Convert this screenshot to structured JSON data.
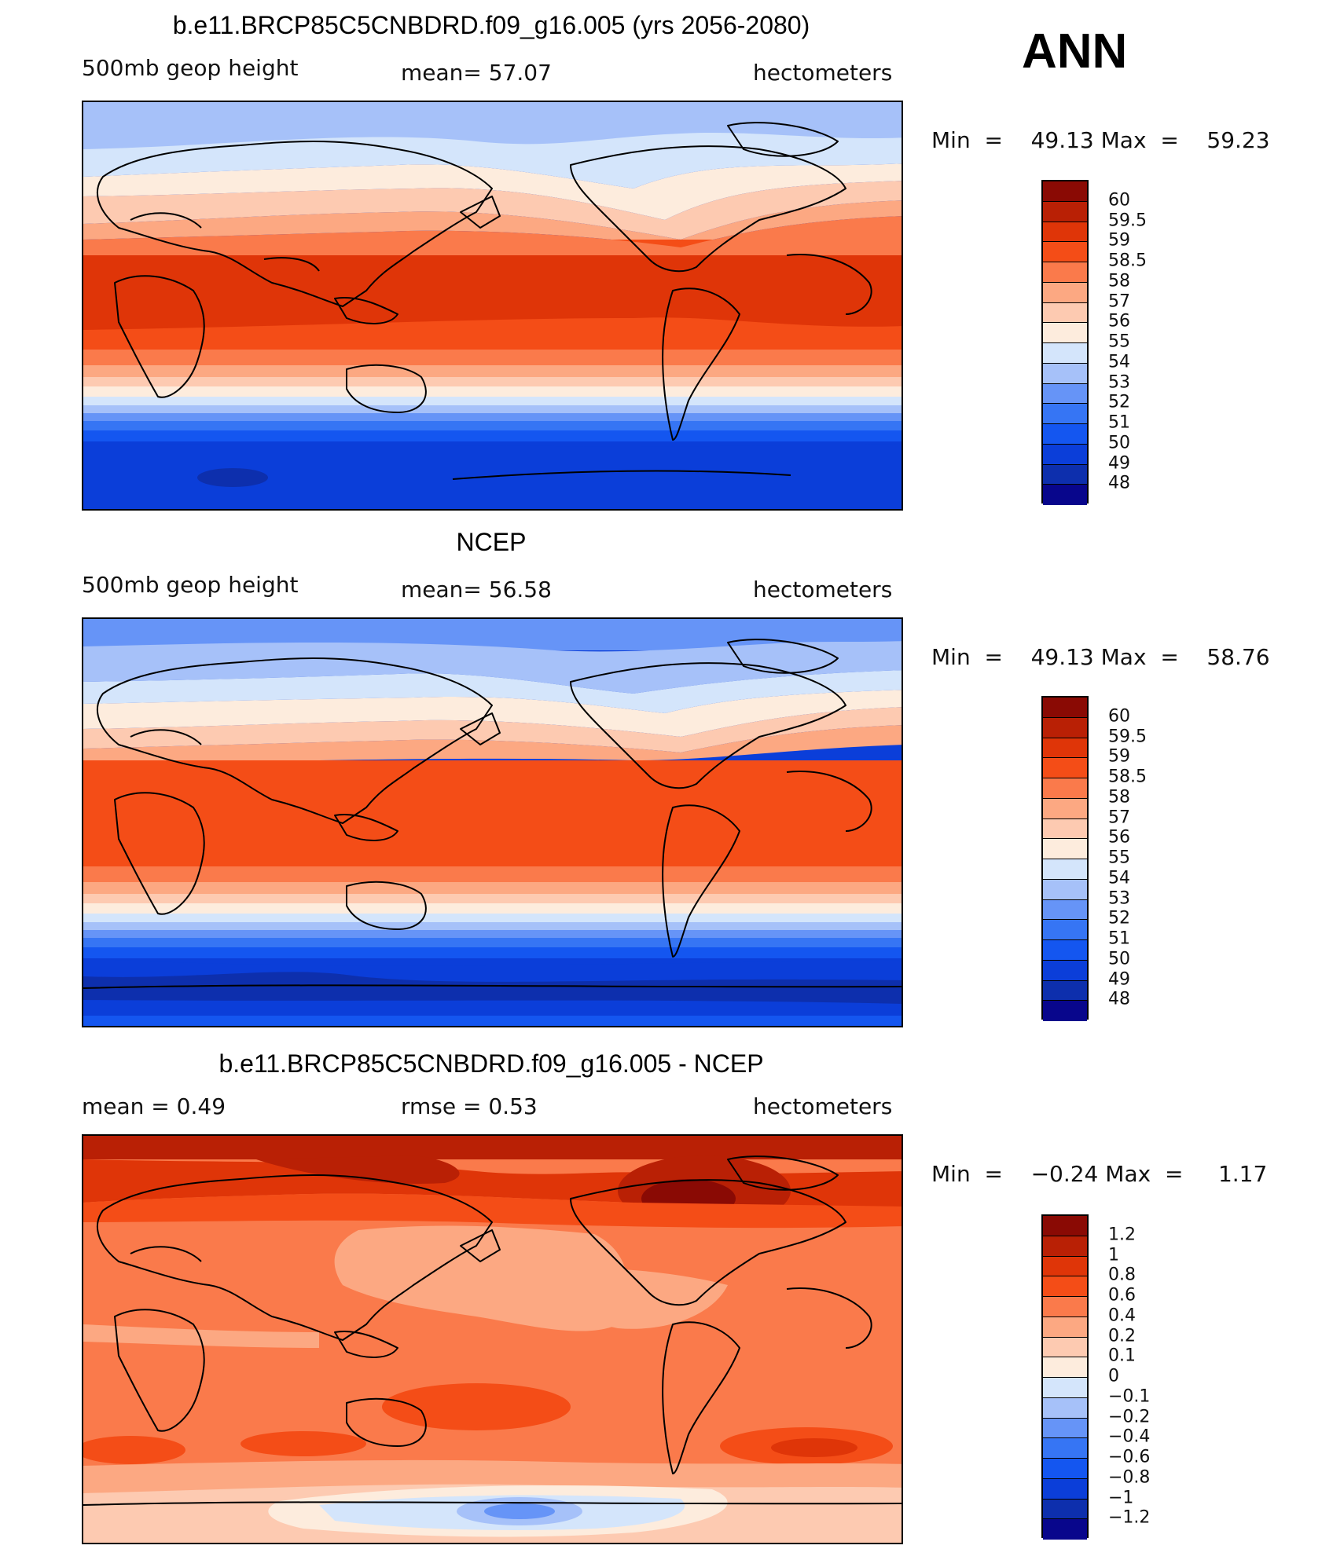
{
  "season": "ANN",
  "colors": {
    "abs": [
      "#08068c",
      "#0d2fad",
      "#0b3ed9",
      "#1456f0",
      "#3675f4",
      "#6694f7",
      "#a6c1f9",
      "#d4e5fb",
      "#fdecdd",
      "#fdcab1",
      "#fca882",
      "#fa7a4b",
      "#f44d17",
      "#df3508",
      "#b92005",
      "#8a0a04"
    ],
    "diff": [
      "#08068c",
      "#0d2fad",
      "#0b3ed9",
      "#1456f0",
      "#3675f4",
      "#6694f7",
      "#a6c1f9",
      "#d4e5fb",
      "#fdecdd",
      "#fdcab1",
      "#fca882",
      "#fa7a4b",
      "#f44d17",
      "#df3508",
      "#b92005",
      "#8a0a04"
    ]
  },
  "levels": {
    "abs": [
      "60",
      "59.5",
      "59",
      "58.5",
      "58",
      "57",
      "56",
      "55",
      "54",
      "53",
      "52",
      "51",
      "50",
      "49",
      "48"
    ],
    "diff": [
      "1.2",
      "1",
      "0.8",
      "0.6",
      "0.4",
      "0.2",
      "0.1",
      "0",
      "−0.1",
      "−0.2",
      "−0.4",
      "−0.6",
      "−0.8",
      "−1",
      "−1.2"
    ]
  },
  "panels": [
    {
      "title": "b.e11.BRCP85C5CNBDRD.f09_g16.005 (yrs 2056-2080)",
      "left_label": "500mb  geop  height",
      "center_label": "mean=   57.07",
      "right_label": "hectometers",
      "min_label": "Min  =",
      "min_value": "49.13",
      "max_label": "Max  =",
      "max_value": "59.23"
    },
    {
      "title": "NCEP",
      "left_label": "500mb  geop  height",
      "center_label": "mean=   56.58",
      "right_label": "hectometers",
      "min_label": "Min  =",
      "min_value": "49.13",
      "max_label": "Max  =",
      "max_value": "58.76"
    },
    {
      "title": "b.e11.BRCP85C5CNBDRD.f09_g16.005 - NCEP",
      "left_label": "mean  =     0.49",
      "center_label": "rmse  =     0.53",
      "right_label": "hectometers",
      "min_label": "Min  =",
      "min_value": "−0.24",
      "max_label": "Max  =",
      "max_value": "1.17"
    }
  ]
}
